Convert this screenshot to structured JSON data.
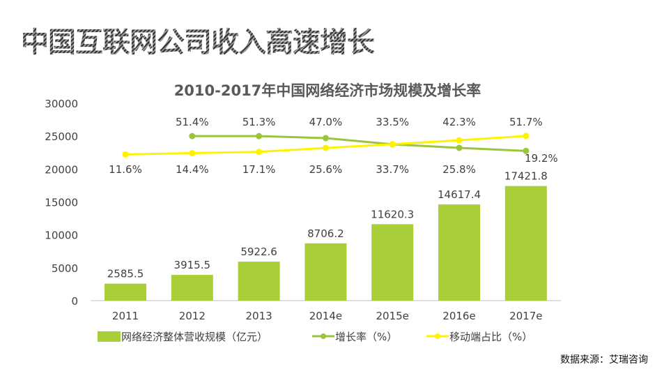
{
  "page": {
    "heading": "中国互联网公司收入高速增长",
    "source": "数据来源：艾瑞咨询"
  },
  "colors": {
    "bar": "#A9CF38",
    "growth": "#9BC53D",
    "mobile": "#FFF200"
  },
  "chart_data": {
    "type": "bar",
    "title": "2010-2017年中国网络经济市场规模及增长率",
    "categories": [
      "2011",
      "2012",
      "2013",
      "2014e",
      "2015e",
      "2016e",
      "2017e"
    ],
    "ylim": [
      0,
      30000
    ],
    "yticks": [
      "0",
      "5000",
      "10000",
      "15000",
      "20000",
      "25000",
      "30000"
    ],
    "legend_position": "bottom",
    "series": [
      {
        "name": "网络经济整体营收规模（亿元）",
        "type": "bar",
        "values": [
          2585.5,
          3915.5,
          5922.6,
          8706.2,
          11620.3,
          14617.4,
          17421.8
        ],
        "labels": [
          "2585.5",
          "3915.5",
          "5922.6",
          "8706.2",
          "11620.3",
          "14617.4",
          "17421.8"
        ]
      },
      {
        "name": "增长率（%）",
        "type": "line",
        "values": [
          null,
          51.4,
          51.3,
          47.0,
          33.5,
          25.8,
          19.2
        ],
        "labels": [
          "",
          "51.4%",
          "51.3%",
          "47.0%",
          "33.5%",
          "25.8%",
          "19.2%"
        ]
      },
      {
        "name": "移动端占比（%）",
        "type": "line",
        "values": [
          11.6,
          14.4,
          17.1,
          25.6,
          33.7,
          42.3,
          51.7
        ],
        "labels": [
          "11.6%",
          "14.4%",
          "17.1%",
          "25.6%",
          "33.7%",
          "42.3%",
          "51.7%"
        ]
      }
    ]
  }
}
